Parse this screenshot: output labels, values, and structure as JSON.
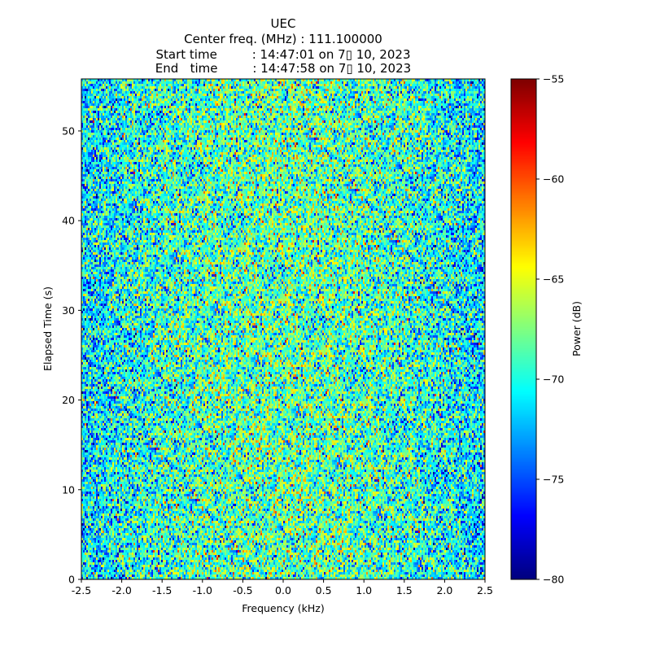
{
  "chart_data": {
    "type": "heatmap",
    "title": [
      "UEC",
      "Center freq. (MHz) : 111.100000",
      "Start time         : 14:47:01 on 7▯ 10, 2023",
      "End   time         : 14:47:58 on 7▯ 10, 2023"
    ],
    "xlabel": "Frequency (kHz)",
    "ylabel": "Elapsed Time (s)",
    "xlim": [
      -2.5,
      2.5
    ],
    "ylim": [
      0,
      55.8
    ],
    "xticks": [
      "-2.5",
      "-2.0",
      "-1.5",
      "-1.0",
      "-0.5",
      "0.0",
      "0.5",
      "1.0",
      "1.5",
      "2.0",
      "2.5"
    ],
    "yticks": [
      "0",
      "10",
      "20",
      "30",
      "40",
      "50"
    ],
    "colorbar": {
      "label": "Power (dB)",
      "range": [
        -80,
        -55
      ],
      "ticks": [
        "−80",
        "−75",
        "−70",
        "−65",
        "−60",
        "−55"
      ],
      "colormap": "jet"
    },
    "description_values": {
      "noise_mean_db_center": -68.5,
      "noise_mean_db_edges": -71.5,
      "noise_std_db": 3.5
    }
  }
}
